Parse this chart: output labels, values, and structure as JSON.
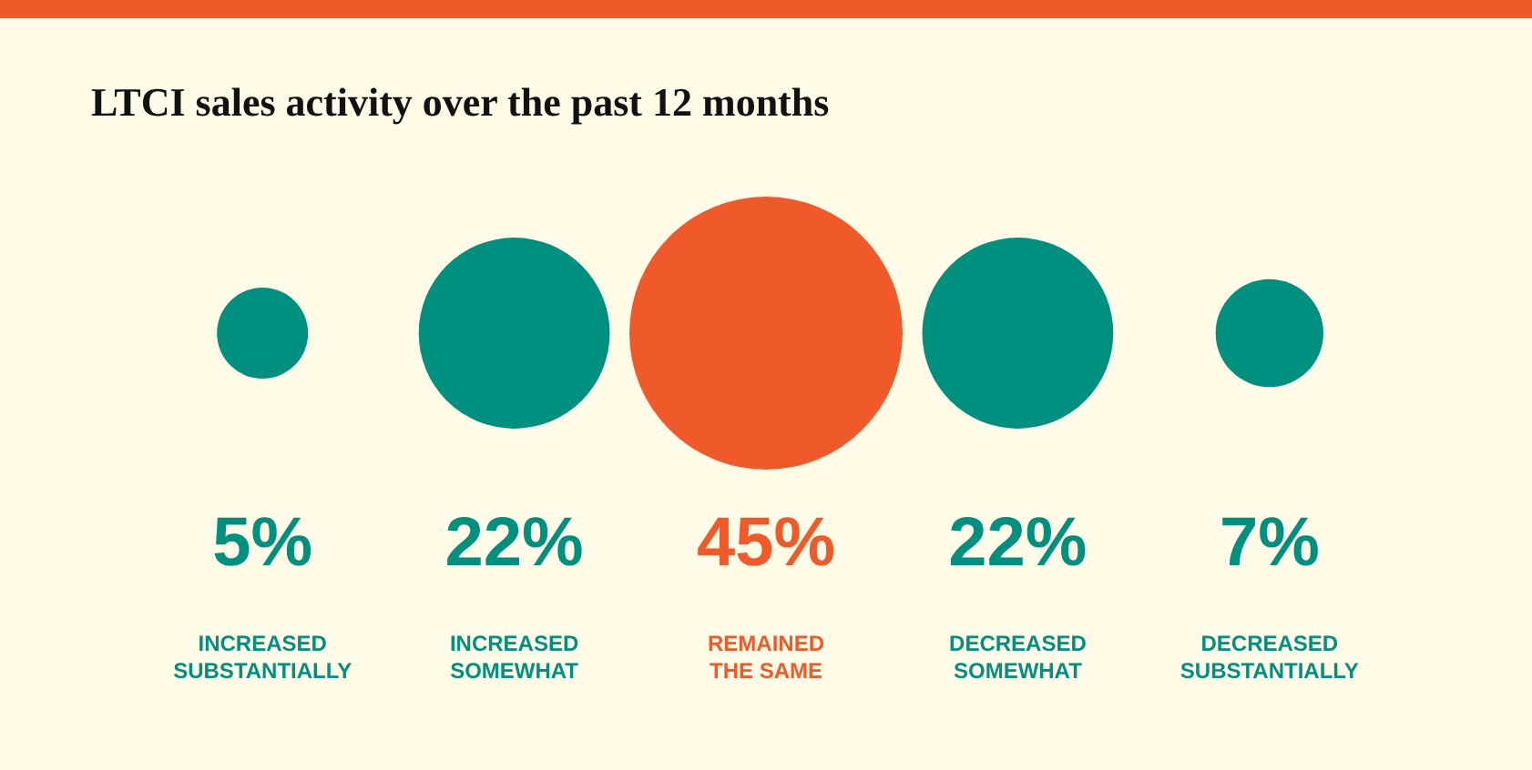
{
  "chart_data": {
    "type": "other",
    "title": "LTCI sales activity over the past 12 months",
    "categories": [
      "INCREASED SUBSTANTIALLY",
      "INCREASED SOMEWHAT",
      "REMAINED THE SAME",
      "DECREASED SOMEWHAT",
      "DECREASED SUBSTANTIALLY"
    ],
    "values": [
      5,
      22,
      45,
      22,
      7
    ],
    "value_labels": [
      "5%",
      "22%",
      "45%",
      "22%",
      "7%"
    ],
    "colors": [
      "#00907f",
      "#00907f",
      "#f05a2a",
      "#00907f",
      "#00907f"
    ],
    "legend": false
  }
}
